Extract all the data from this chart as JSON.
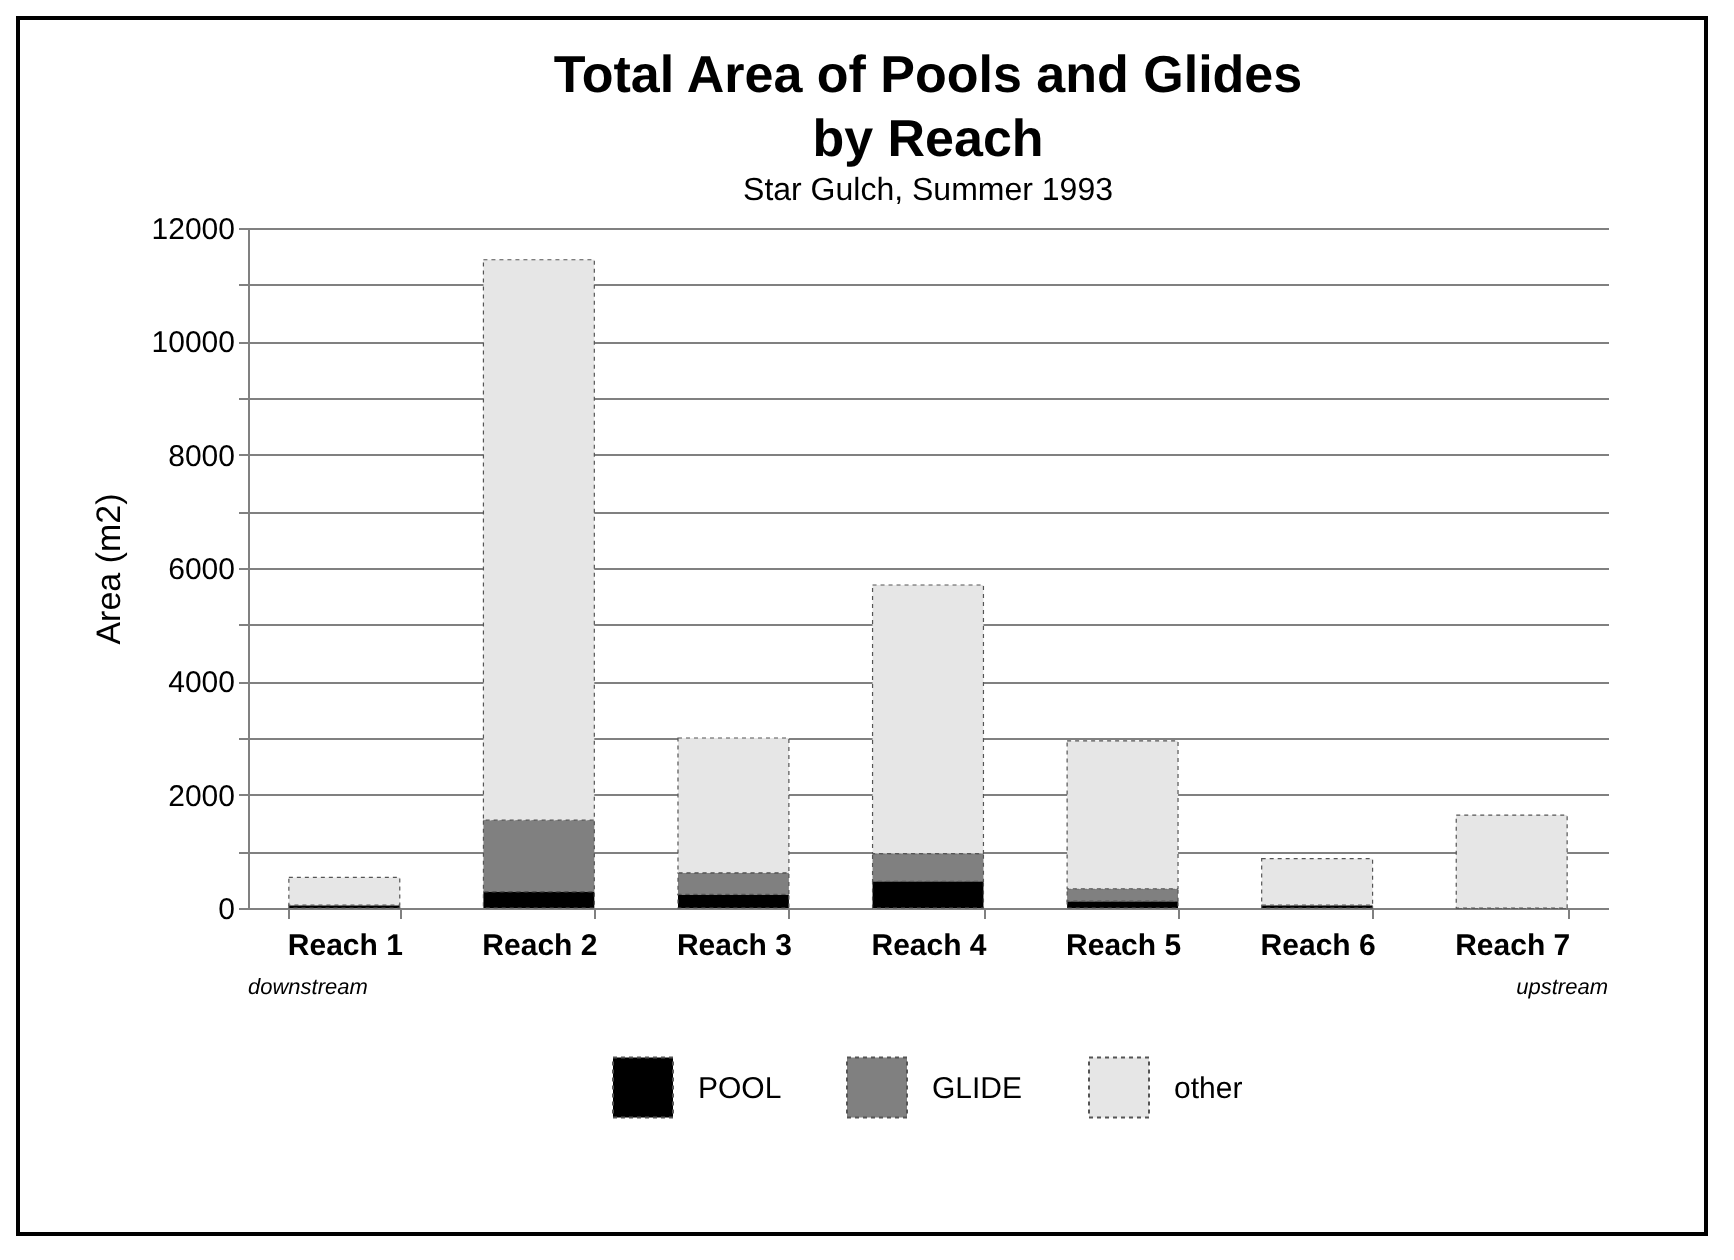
{
  "chart_data": {
    "type": "bar",
    "title": [
      "Total Area of Pools and Glides",
      "by Reach"
    ],
    "subtitle": "Star Gulch, Summer 1993",
    "ylabel": "Area (m2)",
    "categories": [
      "Reach 1",
      "Reach 2",
      "Reach 3",
      "Reach 4",
      "Reach 5",
      "Reach 6",
      "Reach 7"
    ],
    "stacked": true,
    "series": [
      {
        "name": "POOL",
        "color": "#000000",
        "values": [
          50,
          290,
          240,
          470,
          120,
          50,
          0
        ]
      },
      {
        "name": "GLIDE",
        "color": "#808080",
        "values": [
          0,
          1260,
          380,
          490,
          220,
          0,
          0
        ]
      },
      {
        "name": "other",
        "color": "#e6e6e6",
        "values": [
          490,
          9890,
          2380,
          4740,
          2610,
          820,
          1640
        ]
      }
    ],
    "ylim": [
      0,
      12000
    ],
    "yticks": [
      0,
      {
        "value": 1000,
        "label": null
      },
      2000,
      {
        "value": 3000,
        "label": null
      },
      4000,
      {
        "value": 5000,
        "label": null
      },
      6000,
      {
        "value": 7000,
        "label": null
      },
      8000,
      {
        "value": 9000,
        "label": null
      },
      10000,
      {
        "value": 11000,
        "label": null
      },
      12000
    ],
    "grid": "y",
    "legend": "bottom",
    "annotations": [
      "downstream",
      "upstream"
    ]
  }
}
